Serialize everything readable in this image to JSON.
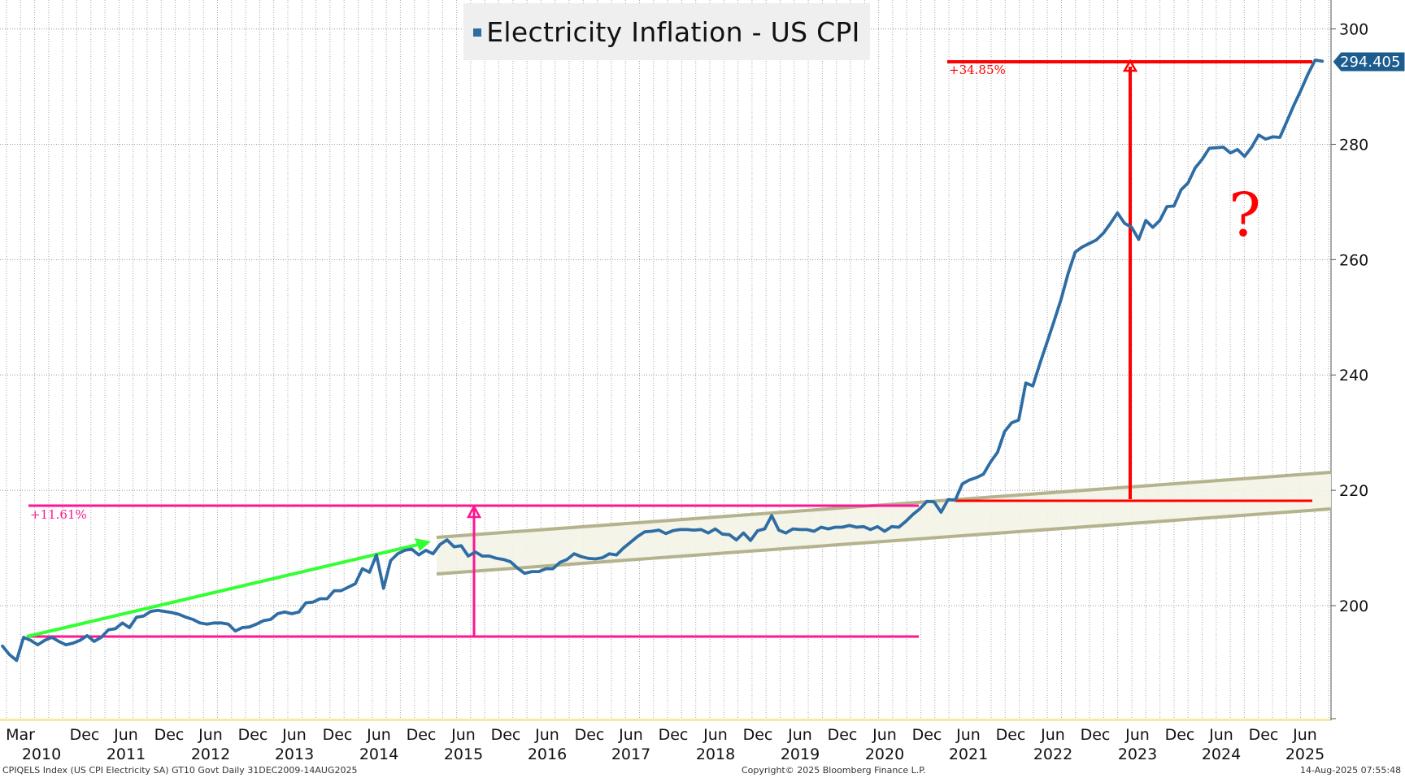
{
  "chart_data": {
    "type": "line",
    "title": "Electricity Inflation - US CPI",
    "legend": [
      "Electricity Inflation - US CPI"
    ],
    "series_color": "#2e6da4",
    "ylim": [
      180,
      300
    ],
    "yticks": [
      200,
      220,
      240,
      260,
      280,
      300
    ],
    "last_value_label": "294.405",
    "x_tick_labels": [
      {
        "month": "Mar",
        "year": "2010"
      },
      {
        "month": "Dec",
        "year": ""
      },
      {
        "month": "Jun",
        "year": "2011"
      },
      {
        "month": "Dec",
        "year": ""
      },
      {
        "month": "Jun",
        "year": "2012"
      },
      {
        "month": "Dec",
        "year": ""
      },
      {
        "month": "Jun",
        "year": "2013"
      },
      {
        "month": "Dec",
        "year": ""
      },
      {
        "month": "Jun",
        "year": "2014"
      },
      {
        "month": "Dec",
        "year": ""
      },
      {
        "month": "Jun",
        "year": "2015"
      },
      {
        "month": "Dec",
        "year": ""
      },
      {
        "month": "Jun",
        "year": "2016"
      },
      {
        "month": "Dec",
        "year": ""
      },
      {
        "month": "Jun",
        "year": "2017"
      },
      {
        "month": "Dec",
        "year": ""
      },
      {
        "month": "Jun",
        "year": "2018"
      },
      {
        "month": "Dec",
        "year": ""
      },
      {
        "month": "Jun",
        "year": "2019"
      },
      {
        "month": "Dec",
        "year": ""
      },
      {
        "month": "Jun",
        "year": "2020"
      },
      {
        "month": "Dec",
        "year": ""
      },
      {
        "month": "Jun",
        "year": "2021"
      },
      {
        "month": "Dec",
        "year": ""
      },
      {
        "month": "Jun",
        "year": "2022"
      },
      {
        "month": "Dec",
        "year": ""
      },
      {
        "month": "Jun",
        "year": "2023"
      },
      {
        "month": "Dec",
        "year": ""
      },
      {
        "month": "Jun",
        "year": "2024"
      },
      {
        "month": "Dec",
        "year": ""
      },
      {
        "month": "Jun",
        "year": "2025"
      }
    ],
    "series": [
      {
        "points": [
          [
            "2009-12",
            193.0
          ],
          [
            "2010-01",
            191.5
          ],
          [
            "2010-02",
            190.5
          ],
          [
            "2010-03",
            194.5
          ],
          [
            "2010-04",
            194.0
          ],
          [
            "2010-05",
            193.2
          ],
          [
            "2010-06",
            194.0
          ],
          [
            "2010-07",
            194.5
          ],
          [
            "2010-08",
            193.8
          ],
          [
            "2010-09",
            193.2
          ],
          [
            "2010-10",
            193.5
          ],
          [
            "2010-11",
            194.0
          ],
          [
            "2010-12",
            194.8
          ],
          [
            "2011-01",
            193.8
          ],
          [
            "2011-02",
            194.5
          ],
          [
            "2011-03",
            195.8
          ],
          [
            "2011-04",
            196.0
          ],
          [
            "2011-05",
            197.0
          ],
          [
            "2011-06",
            196.2
          ],
          [
            "2011-07",
            198.0
          ],
          [
            "2011-08",
            198.2
          ],
          [
            "2011-09",
            199.0
          ],
          [
            "2011-10",
            199.2
          ],
          [
            "2011-11",
            199.0
          ],
          [
            "2011-12",
            198.8
          ],
          [
            "2012-01",
            198.5
          ],
          [
            "2012-02",
            198.0
          ],
          [
            "2012-03",
            197.6
          ],
          [
            "2012-04",
            197.0
          ],
          [
            "2012-05",
            196.8
          ],
          [
            "2012-06",
            197.0
          ],
          [
            "2012-07",
            197.0
          ],
          [
            "2012-08",
            196.8
          ],
          [
            "2012-09",
            195.6
          ],
          [
            "2012-10",
            196.2
          ],
          [
            "2012-11",
            196.3
          ],
          [
            "2012-12",
            196.8
          ],
          [
            "2013-01",
            197.4
          ],
          [
            "2013-02",
            197.6
          ],
          [
            "2013-03",
            198.6
          ],
          [
            "2013-04",
            198.9
          ],
          [
            "2013-05",
            198.6
          ],
          [
            "2013-06",
            198.9
          ],
          [
            "2013-07",
            200.5
          ],
          [
            "2013-08",
            200.6
          ],
          [
            "2013-09",
            201.2
          ],
          [
            "2013-10",
            201.2
          ],
          [
            "2013-11",
            202.6
          ],
          [
            "2013-12",
            202.6
          ],
          [
            "2014-01",
            203.2
          ],
          [
            "2014-02",
            203.8
          ],
          [
            "2014-03",
            206.4
          ],
          [
            "2014-04",
            205.8
          ],
          [
            "2014-05",
            208.8
          ],
          [
            "2014-06",
            203.0
          ],
          [
            "2014-07",
            207.8
          ],
          [
            "2014-08",
            209.0
          ],
          [
            "2014-09",
            209.6
          ],
          [
            "2014-10",
            209.8
          ],
          [
            "2014-11",
            208.8
          ],
          [
            "2014-12",
            209.6
          ],
          [
            "2015-01",
            209.0
          ],
          [
            "2015-02",
            210.6
          ],
          [
            "2015-03",
            211.4
          ],
          [
            "2015-04",
            210.2
          ],
          [
            "2015-05",
            210.4
          ],
          [
            "2015-06",
            208.6
          ],
          [
            "2015-07",
            209.3
          ],
          [
            "2015-08",
            208.6
          ],
          [
            "2015-09",
            208.6
          ],
          [
            "2015-10",
            208.2
          ],
          [
            "2015-11",
            208.0
          ],
          [
            "2015-12",
            207.6
          ],
          [
            "2016-01",
            206.5
          ],
          [
            "2016-02",
            205.6
          ],
          [
            "2016-03",
            205.9
          ],
          [
            "2016-04",
            205.9
          ],
          [
            "2016-05",
            206.4
          ],
          [
            "2016-06",
            206.4
          ],
          [
            "2016-07",
            207.5
          ],
          [
            "2016-08",
            208.0
          ],
          [
            "2016-09",
            209.0
          ],
          [
            "2016-10",
            208.5
          ],
          [
            "2016-11",
            208.2
          ],
          [
            "2016-12",
            208.1
          ],
          [
            "2017-01",
            208.3
          ],
          [
            "2017-02",
            209.0
          ],
          [
            "2017-03",
            208.8
          ],
          [
            "2017-04",
            210.0
          ],
          [
            "2017-05",
            211.0
          ],
          [
            "2017-06",
            212.0
          ],
          [
            "2017-07",
            212.8
          ],
          [
            "2017-08",
            212.9
          ],
          [
            "2017-09",
            213.1
          ],
          [
            "2017-10",
            212.5
          ],
          [
            "2017-11",
            213.0
          ],
          [
            "2017-12",
            213.2
          ],
          [
            "2018-01",
            213.2
          ],
          [
            "2018-02",
            213.1
          ],
          [
            "2018-03",
            213.2
          ],
          [
            "2018-04",
            212.6
          ],
          [
            "2018-05",
            213.3
          ],
          [
            "2018-06",
            212.4
          ],
          [
            "2018-07",
            212.3
          ],
          [
            "2018-08",
            211.4
          ],
          [
            "2018-09",
            212.6
          ],
          [
            "2018-10",
            211.3
          ],
          [
            "2018-11",
            213.0
          ],
          [
            "2018-12",
            213.3
          ],
          [
            "2019-01",
            215.6
          ],
          [
            "2019-02",
            213.1
          ],
          [
            "2019-03",
            212.6
          ],
          [
            "2019-04",
            213.3
          ],
          [
            "2019-05",
            213.2
          ],
          [
            "2019-06",
            213.2
          ],
          [
            "2019-07",
            212.9
          ],
          [
            "2019-08",
            213.6
          ],
          [
            "2019-09",
            213.3
          ],
          [
            "2019-10",
            213.6
          ],
          [
            "2019-11",
            213.6
          ],
          [
            "2019-12",
            213.9
          ],
          [
            "2020-01",
            213.6
          ],
          [
            "2020-02",
            213.7
          ],
          [
            "2020-03",
            213.2
          ],
          [
            "2020-04",
            213.7
          ],
          [
            "2020-05",
            212.9
          ],
          [
            "2020-06",
            213.7
          ],
          [
            "2020-07",
            213.6
          ],
          [
            "2020-08",
            214.6
          ],
          [
            "2020-09",
            215.8
          ],
          [
            "2020-10",
            216.8
          ],
          [
            "2020-11",
            218.1
          ],
          [
            "2020-12",
            218.0
          ],
          [
            "2021-01",
            216.2
          ],
          [
            "2021-02",
            218.4
          ],
          [
            "2021-03",
            218.3
          ],
          [
            "2021-04",
            221.1
          ],
          [
            "2021-05",
            221.8
          ],
          [
            "2021-06",
            222.2
          ],
          [
            "2021-07",
            222.8
          ],
          [
            "2021-08",
            224.9
          ],
          [
            "2021-09",
            226.6
          ],
          [
            "2021-10",
            230.2
          ],
          [
            "2021-11",
            231.7
          ],
          [
            "2021-12",
            232.2
          ],
          [
            "2022-01",
            238.6
          ],
          [
            "2022-02",
            238.1
          ],
          [
            "2022-03",
            242.0
          ],
          [
            "2022-04",
            245.6
          ],
          [
            "2022-05",
            249.3
          ],
          [
            "2022-06",
            253.1
          ],
          [
            "2022-07",
            257.6
          ],
          [
            "2022-08",
            261.3
          ],
          [
            "2022-09",
            262.2
          ],
          [
            "2022-10",
            262.8
          ],
          [
            "2022-11",
            263.4
          ],
          [
            "2022-12",
            264.6
          ],
          [
            "2023-01",
            266.3
          ],
          [
            "2023-02",
            268.1
          ],
          [
            "2023-03",
            266.3
          ],
          [
            "2023-04",
            265.6
          ],
          [
            "2023-05",
            263.5
          ],
          [
            "2023-06",
            266.8
          ],
          [
            "2023-07",
            265.6
          ],
          [
            "2023-08",
            266.8
          ],
          [
            "2023-09",
            269.2
          ],
          [
            "2023-10",
            269.3
          ],
          [
            "2023-11",
            272.1
          ],
          [
            "2023-12",
            273.3
          ],
          [
            "2024-01",
            275.9
          ],
          [
            "2024-02",
            277.4
          ],
          [
            "2024-03",
            279.3
          ],
          [
            "2024-04",
            279.4
          ],
          [
            "2024-05",
            279.5
          ],
          [
            "2024-06",
            278.5
          ],
          [
            "2024-07",
            279.1
          ],
          [
            "2024-08",
            277.9
          ],
          [
            "2024-09",
            279.5
          ],
          [
            "2024-10",
            281.6
          ],
          [
            "2024-11",
            280.9
          ],
          [
            "2024-12",
            281.3
          ],
          [
            "2025-01",
            281.2
          ],
          [
            "2025-02",
            284.0
          ],
          [
            "2025-03",
            286.8
          ],
          [
            "2025-04",
            289.4
          ],
          [
            "2025-05",
            292.2
          ],
          [
            "2025-06",
            294.6
          ],
          [
            "2025-07",
            294.405
          ]
        ]
      }
    ],
    "annotations": {
      "pink_pct": "+11.61%",
      "red_pct": "+34.85%",
      "question_mark": "?"
    }
  },
  "footer": {
    "left": "CPIQELS Index (US CPI Electricity SA) GT10  Govt  Daily 31DEC2009-14AUG2025",
    "center": "Copyright© 2025 Bloomberg Finance L.P.",
    "right": "14-Aug-2025 07:55:48"
  },
  "colors": {
    "series": "#2e6da4",
    "pink": "#ff1493",
    "red": "#ff0000",
    "green": "#33ff33",
    "channel": "#b5b38e",
    "channel_fill": "#f3f3e6",
    "last_tag": "#1d5c8e"
  }
}
